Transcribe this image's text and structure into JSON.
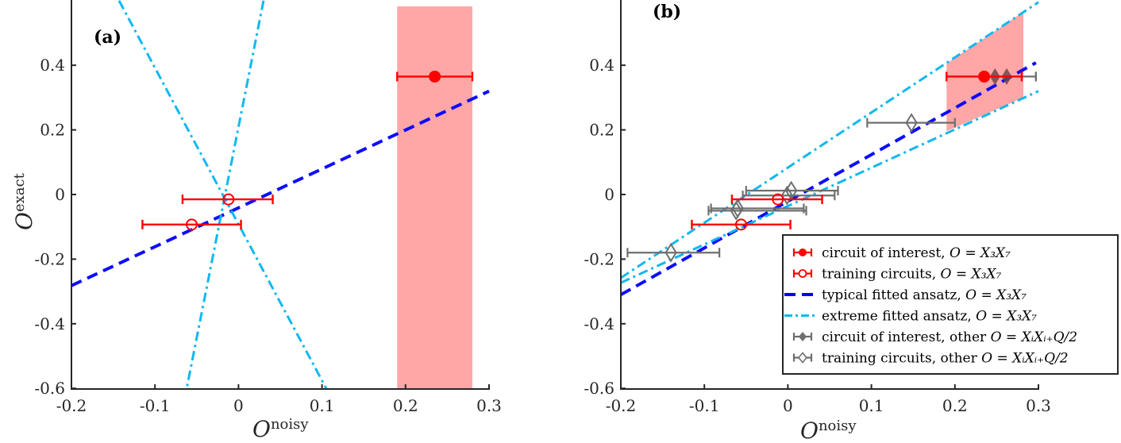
{
  "chart_data": [
    {
      "panel": "(a)",
      "type": "scatter",
      "xlabel": "O^noisy",
      "ylabel": "O^exact",
      "xlim": [
        -0.2,
        0.3
      ],
      "ylim": [
        -0.6,
        0.58
      ],
      "xticks": [
        "-0.2",
        "-0.1",
        "0",
        "0.1",
        "0.2",
        "0.3"
      ],
      "yticks": [
        "-0.6",
        "-0.4",
        "-0.2",
        "0",
        "0.2",
        "0.4"
      ],
      "grid": false,
      "shaded_region": {
        "color": "#ffa6a6",
        "x_range": [
          0.19,
          0.28
        ],
        "y_range": [
          -0.6,
          0.58
        ]
      },
      "series": [
        {
          "name": "circuit of interest, O = X3X7",
          "color": "#ff0000",
          "marker": "filled-circle",
          "points": [
            {
              "x": 0.235,
              "y": 0.365,
              "xerr_low": 0.19,
              "xerr_high": 0.28
            }
          ]
        },
        {
          "name": "training circuits, O = X3X7",
          "color": "#ff0000",
          "marker": "open-circle",
          "points": [
            {
              "x": -0.012,
              "y": -0.015,
              "xerr_low": -0.067,
              "xerr_high": 0.041
            },
            {
              "x": -0.056,
              "y": -0.093,
              "xerr_low": -0.115,
              "xerr_high": 0.003
            }
          ]
        },
        {
          "name": "typical fitted ansatz, O = X3X7",
          "color": "#0000ff",
          "style": "dashed",
          "line": [
            [
              -0.2,
              -0.282
            ],
            [
              0.3,
              0.32
            ]
          ]
        },
        {
          "name": "extreme fitted ansatz, O = X3X7 (1)",
          "color": "#10b8f0",
          "style": "dashdot",
          "line": [
            [
              -0.143,
              0.6
            ],
            [
              0.105,
              -0.6
            ]
          ]
        },
        {
          "name": "extreme fitted ansatz, O = X3X7 (2)",
          "color": "#10b8f0",
          "style": "dashdot",
          "line": [
            [
              0.03,
              0.6
            ],
            [
              -0.062,
              -0.6
            ]
          ]
        }
      ]
    },
    {
      "panel": "(b)",
      "type": "scatter",
      "xlabel": "O^noisy",
      "ylabel": "",
      "xlim": [
        -0.2,
        0.3
      ],
      "ylim": [
        -0.6,
        0.58
      ],
      "xticks": [
        "-0.2",
        "-0.1",
        "0",
        "0.1",
        "0.2",
        "0.3"
      ],
      "yticks": [
        "-0.6",
        "-0.4",
        "-0.2",
        "0",
        "0.2",
        "0.4"
      ],
      "grid": false,
      "shaded_region": {
        "color": "#ffa6a6",
        "polygon": [
          [
            0.19,
            0.405
          ],
          [
            0.282,
            0.565
          ],
          [
            0.282,
            0.3
          ],
          [
            0.19,
            0.196
          ]
        ]
      },
      "series": [
        {
          "name": "typical fitted ansatz, O = X3X7",
          "color": "#0000ff",
          "style": "dashed",
          "line": [
            [
              -0.2,
              -0.31
            ],
            [
              0.297,
              0.408
            ]
          ]
        },
        {
          "name": "extreme fitted ansatz upper, O = X3X7",
          "color": "#10b8f0",
          "style": "dashdot",
          "line": [
            [
              -0.2,
              -0.258
            ],
            [
              0.3,
              0.595
            ]
          ]
        },
        {
          "name": "extreme fitted ansatz lower, O = X3X7",
          "color": "#10b8f0",
          "style": "dashdot",
          "line": [
            [
              -0.2,
              -0.273
            ],
            [
              0.3,
              0.32
            ]
          ]
        },
        {
          "name": "training circuits, other O = XiXi+Q/2",
          "color": "#6e6e6e",
          "marker": "open-diamond",
          "points": [
            {
              "x": 0.148,
              "y": 0.222,
              "xerr_low": 0.095,
              "xerr_high": 0.2
            },
            {
              "x": -0.14,
              "y": -0.18,
              "xerr_low": -0.192,
              "xerr_high": -0.082
            },
            {
              "x": 0.004,
              "y": 0.012,
              "xerr_low": -0.05,
              "xerr_high": 0.06
            },
            {
              "x": -0.001,
              "y": -0.003,
              "xerr_low": -0.054,
              "xerr_high": 0.056
            },
            {
              "x": -0.06,
              "y": -0.043,
              "xerr_low": -0.092,
              "xerr_high": 0.019
            },
            {
              "x": -0.062,
              "y": -0.05,
              "xerr_low": -0.095,
              "xerr_high": 0.022
            }
          ]
        },
        {
          "name": "training circuits, O = X3X7",
          "color": "#ff0000",
          "marker": "open-circle",
          "points": [
            {
              "x": -0.012,
              "y": -0.015,
              "xerr_low": -0.067,
              "xerr_high": 0.041
            },
            {
              "x": -0.056,
              "y": -0.093,
              "xerr_low": -0.115,
              "xerr_high": 0.003
            }
          ]
        },
        {
          "name": "circuit of interest, other O = XiXi+Q/2",
          "color": "#6e6e6e",
          "marker": "filled-diamond",
          "points": [
            {
              "x": 0.248,
              "y": 0.365,
              "xerr_low": 0.19,
              "xerr_high": 0.297
            },
            {
              "x": 0.262,
              "y": 0.365,
              "xerr_low": 0.19,
              "xerr_high": 0.297
            }
          ]
        },
        {
          "name": "circuit of interest, O = X3X7",
          "color": "#ff0000",
          "marker": "filled-circle",
          "points": [
            {
              "x": 0.235,
              "y": 0.365,
              "xerr_low": 0.19,
              "xerr_high": 0.28
            }
          ]
        }
      ],
      "legend": {
        "position": "lower right",
        "entries": [
          {
            "label": "circuit of interest, ",
            "math": "O = X₃X₇",
            "color": "#ff0000",
            "symbol": "filled-circle-errbar"
          },
          {
            "label": "training circuits, ",
            "math": "O = X₃X₇",
            "color": "#ff0000",
            "symbol": "open-circle-errbar"
          },
          {
            "label": "typical fitted ansatz, ",
            "math": "O = X₃X₇",
            "color": "#0000ff",
            "symbol": "dashed-line"
          },
          {
            "label": "extreme fitted ansatz, ",
            "math": "O = X₃X₇",
            "color": "#10b8f0",
            "symbol": "dashdot-line"
          },
          {
            "label": "circuit of interest, other ",
            "math": "O = XᵢXᵢ₊Q/2",
            "color": "#6e6e6e",
            "symbol": "filled-diamond-errbar"
          },
          {
            "label": "training circuits, other ",
            "math": "O = XᵢXᵢ₊Q/2",
            "color": "#6e6e6e",
            "symbol": "open-diamond-errbar"
          }
        ]
      }
    }
  ],
  "labels": {
    "panel_a": "(a)",
    "panel_b": "(b)",
    "xlabel_main": "O",
    "xlabel_sup": "noisy",
    "ylabel_main": "O",
    "ylabel_sup": "exact"
  }
}
